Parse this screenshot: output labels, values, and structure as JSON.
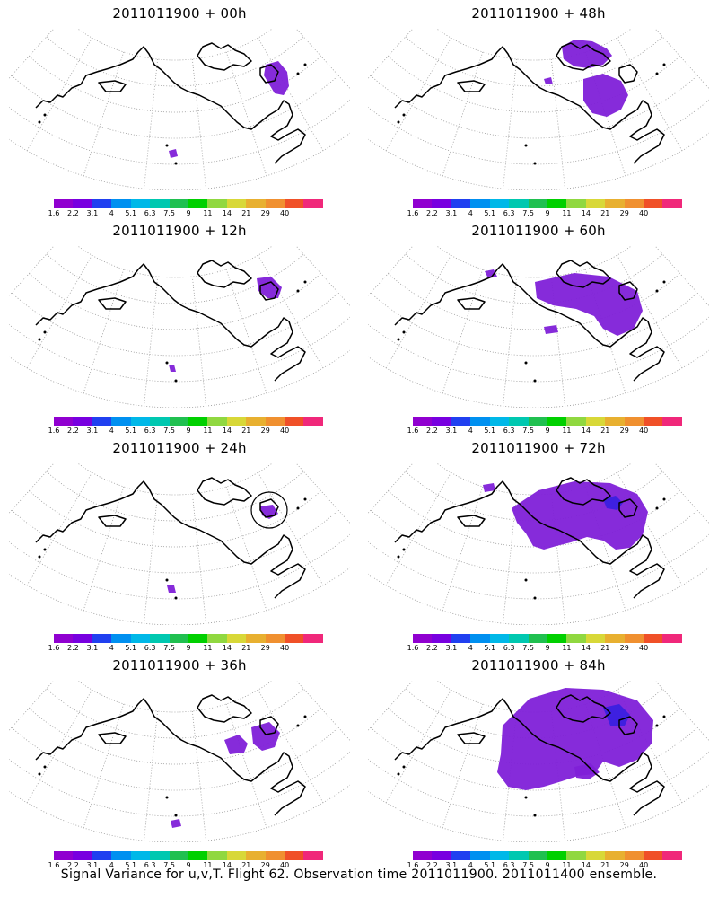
{
  "caption": "Signal Variance for u,v,T. Flight 62. Observation time 2011011900. 2011011400 ensemble.",
  "panels": [
    {
      "title": "2011011900 + 00h"
    },
    {
      "title": "2011011900 + 48h"
    },
    {
      "title": "2011011900 + 12h"
    },
    {
      "title": "2011011900 + 60h"
    },
    {
      "title": "2011011900 + 24h"
    },
    {
      "title": "2011011900 + 72h"
    },
    {
      "title": "2011011900 + 36h"
    },
    {
      "title": "2011011900 + 84h"
    }
  ],
  "legend": {
    "labels": [
      "1.6",
      "2.2",
      "3.1",
      "4",
      "5.1",
      "6.3",
      "7.5",
      "9",
      "11",
      "14",
      "21",
      "29",
      "40"
    ],
    "colors": [
      "#9000d0",
      "#7800e0",
      "#2040f0",
      "#0090f0",
      "#00b8e8",
      "#00c8b0",
      "#20c050",
      "#00d000",
      "#90d840",
      "#d8d838",
      "#e8b030",
      "#f09030",
      "#f05028",
      "#f0287a"
    ]
  },
  "colors": {
    "contour_fill": "#8020d8",
    "contour_fill_dark": "#3a20e0",
    "coastline": "#000000",
    "grid": "#9a9a9a"
  }
}
